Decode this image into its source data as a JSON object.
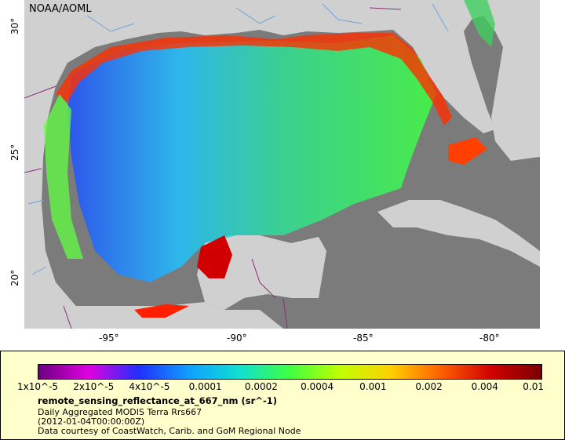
{
  "watermark": "NOAA/AOML",
  "map": {
    "x_ticks": [
      "-95°",
      "-90°",
      "-85°",
      "-80°"
    ],
    "y_ticks": [
      "30°",
      "25°",
      "20°"
    ],
    "colors": {
      "ocean_no_data": "#7b7b7b",
      "land": "#d0d0d0",
      "rivers": "#6fa4d8",
      "borders": "#8a2d7a"
    }
  },
  "legend": {
    "tick_labels": [
      "1x10^-5",
      "2x10^-5",
      "4x10^-5",
      "0.0001",
      "0.0002",
      "0.0004",
      "0.001",
      "0.002",
      "0.004",
      "0.01"
    ],
    "colormap": [
      "#6b0080",
      "#e000e0",
      "#2030ff",
      "#10a0ff",
      "#10e0d0",
      "#40ff40",
      "#c0ff00",
      "#ffd000",
      "#ff6000",
      "#d00000",
      "#7a0000"
    ],
    "title": "remote_sensing_reflectance_at_667_nm (sr^-1)",
    "line1": "Daily Aggregated MODIS Terra Rrs667",
    "line2": "(2012-01-04T00:00:00Z)",
    "line3": "Data courtesy of CoastWatch, Carib. and GoM Regional Node"
  }
}
